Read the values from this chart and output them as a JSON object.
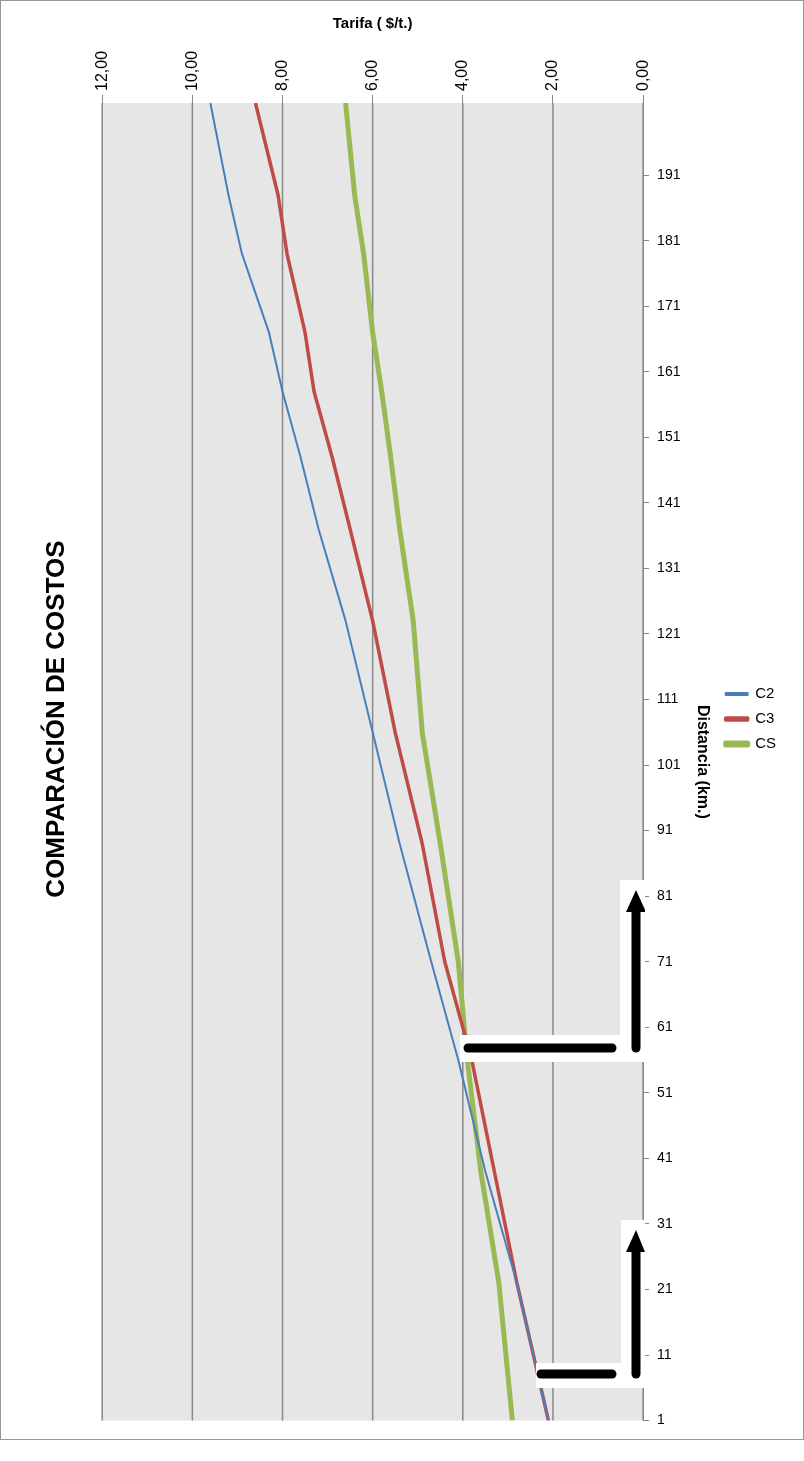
{
  "chart_data": {
    "type": "line",
    "title": "COMPARACIÓN DE COSTOS",
    "xlabel": "Tarifa ( $/t.)",
    "ylabel": "Distancia (km.)",
    "series": [
      {
        "name": "C2",
        "color": "#4a7ebb",
        "x": [
          2.1,
          2.8,
          3.5,
          4.1,
          4.7,
          5.4,
          6.0,
          6.6,
          7.2,
          7.6,
          8.0,
          8.3,
          8.9,
          9.2,
          9.6
        ],
        "values": [
          1,
          22,
          39,
          56,
          71,
          89,
          106,
          123,
          137,
          148,
          158,
          167,
          179,
          188,
          202
        ]
      },
      {
        "name": "C3",
        "color": "#be4b48",
        "x": [
          2.1,
          2.8,
          3.3,
          3.8,
          4.4,
          4.9,
          5.5,
          6.0,
          6.5,
          6.9,
          7.3,
          7.5,
          7.9,
          8.1,
          8.6
        ],
        "values": [
          1,
          22,
          39,
          56,
          71,
          89,
          106,
          123,
          137,
          148,
          158,
          167,
          179,
          188,
          202
        ]
      },
      {
        "name": "CS",
        "color": "#98b954",
        "x": [
          2.9,
          3.2,
          3.6,
          3.9,
          4.1,
          4.5,
          4.9,
          5.1,
          5.4,
          5.6,
          5.8,
          6.0,
          6.2,
          6.4,
          6.6
        ],
        "values": [
          1,
          22,
          39,
          56,
          71,
          89,
          106,
          123,
          137,
          148,
          158,
          167,
          179,
          188,
          202
        ]
      }
    ],
    "ylim": [
      1,
      202
    ],
    "yticks": [
      1,
      11,
      21,
      31,
      41,
      51,
      61,
      71,
      81,
      91,
      101,
      111,
      121,
      131,
      141,
      151,
      161,
      171,
      181,
      191
    ],
    "xlim": [
      12,
      0
    ],
    "xticks": [
      {
        "value": 0,
        "label": "0,00"
      },
      {
        "value": 2,
        "label": "2,00"
      },
      {
        "value": 4,
        "label": "4,00"
      },
      {
        "value": 6,
        "label": "6,00"
      },
      {
        "value": 8,
        "label": "8,00"
      },
      {
        "value": 10,
        "label": "10,00"
      },
      {
        "value": 12,
        "label": "12,00"
      }
    ],
    "grid": "x",
    "legend": "right",
    "marker": "none",
    "line_style": "solid"
  }
}
